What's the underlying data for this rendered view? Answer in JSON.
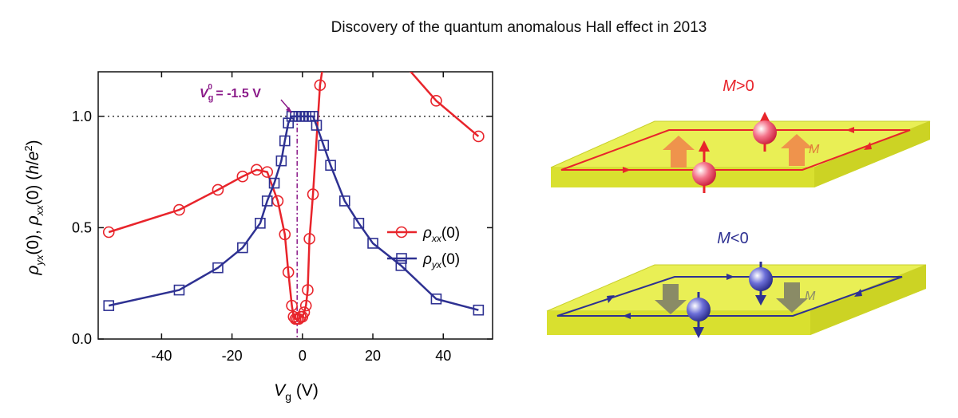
{
  "title": "Discovery of the quantum anomalous Hall effect in 2013",
  "chart_data": {
    "type": "line",
    "xlabel_main": "V",
    "xlabel_sub": "g",
    "xlabel_unit": " (V)",
    "ylabel": "ρyx(0), ρxx(0) (h/e²)",
    "xlim": [
      -58,
      54
    ],
    "ylim": [
      0,
      1.2
    ],
    "xticks": [
      -40,
      -20,
      0,
      20,
      40
    ],
    "xtick_labels": [
      "-40",
      "-20",
      "0",
      "20",
      "40"
    ],
    "yticks": [
      0,
      0.5,
      1.0
    ],
    "ytick_labels": [
      "0.0",
      "0.5",
      "1.0"
    ],
    "reference_line_y": 1.0,
    "annotation": {
      "main": "V",
      "sub": "g",
      "sup": "0",
      "rest": " = -1.5 V",
      "x": -1.5
    },
    "legend_position": "center-right",
    "series": [
      {
        "name_main": "ρ",
        "name_sub": "xx",
        "name_rest": "(0)",
        "color": "#e8242b",
        "marker": "circle",
        "x": [
          -55,
          -35,
          -24,
          -17,
          -13,
          -10,
          -7,
          -5,
          -4,
          -3,
          -2.5,
          -2,
          -1.5,
          -1,
          -0.5,
          0,
          0.5,
          1,
          1.5,
          2,
          3,
          5,
          38,
          50
        ],
        "y": [
          0.48,
          0.58,
          0.67,
          0.73,
          0.76,
          0.75,
          0.62,
          0.47,
          0.3,
          0.15,
          0.1,
          0.09,
          0.09,
          0.09,
          0.1,
          0.1,
          0.12,
          0.15,
          0.22,
          0.45,
          0.65,
          1.14,
          1.07,
          0.91
        ]
      },
      {
        "name_main": "ρ",
        "name_sub": "yx",
        "name_rest": "(0)",
        "color": "#2e3192",
        "marker": "square",
        "x": [
          -55,
          -35,
          -24,
          -17,
          -12,
          -10,
          -8,
          -6,
          -5,
          -4,
          -3,
          -2,
          -1,
          0,
          1,
          2,
          3,
          4,
          6,
          8,
          12,
          16,
          20,
          28,
          38,
          50
        ],
        "y": [
          0.15,
          0.22,
          0.32,
          0.41,
          0.52,
          0.62,
          0.7,
          0.8,
          0.89,
          0.97,
          1.0,
          1.0,
          1.0,
          1.0,
          1.0,
          1.0,
          1.0,
          0.96,
          0.87,
          0.78,
          0.62,
          0.52,
          0.43,
          0.33,
          0.18,
          0.13
        ]
      }
    ]
  },
  "diagram": {
    "top_label_main": "M",
    "top_label_rest": ">0",
    "top_magnetization_label": "M",
    "bottom_label_main": "M",
    "bottom_label_rest": "<0",
    "bottom_magnetization_label": "M",
    "top_color": "#e8242b",
    "bottom_color": "#2e3192",
    "slab_color": "#e6ee3c"
  }
}
